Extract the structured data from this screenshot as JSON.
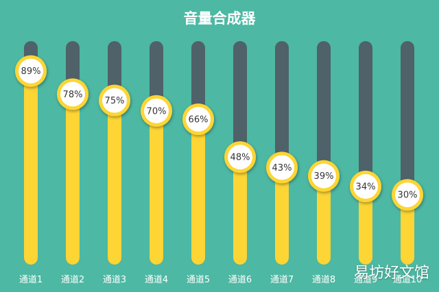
{
  "chart_data": {
    "type": "bar",
    "title": "音量合成器",
    "categories": [
      "通道1",
      "通道2",
      "通道3",
      "通道4",
      "通道5",
      "通道6",
      "通道7",
      "通道8",
      "通道9",
      "通道10"
    ],
    "values": [
      89,
      78,
      75,
      70,
      66,
      48,
      43,
      39,
      34,
      30
    ],
    "value_labels": [
      "89%",
      "78%",
      "75%",
      "70%",
      "66%",
      "48%",
      "43%",
      "39%",
      "34%",
      "30%"
    ],
    "ylim": [
      0,
      100
    ],
    "grid": false,
    "colors": {
      "background": "#4db8a3",
      "track": "#4f6169",
      "fill": "#fdd535",
      "knob_ring": "#fdd535",
      "knob_face": "#ffffff"
    }
  },
  "watermark": "易坊好文馆"
}
